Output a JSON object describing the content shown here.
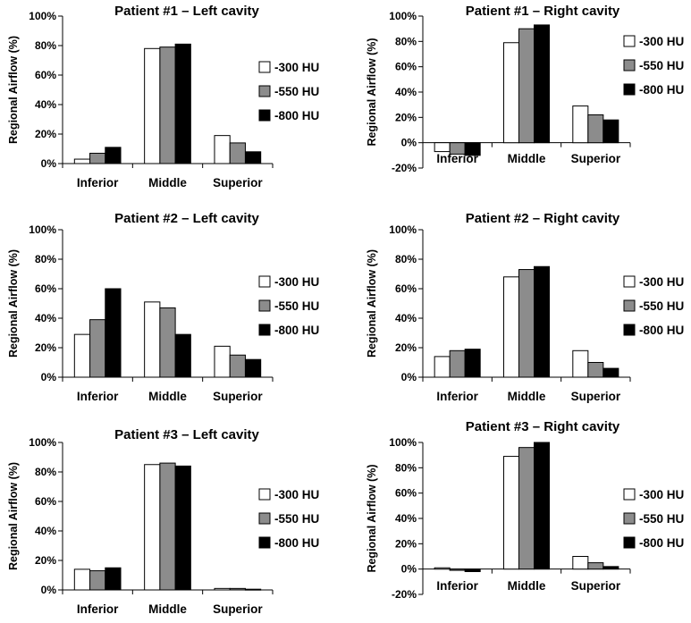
{
  "chart_data": [
    {
      "type": "bar",
      "title": "Patient #1 – Left cavity",
      "ylabel": "Regional Airflow (%)",
      "xlabel": "",
      "ylim": [
        0,
        100
      ],
      "yticks": [
        0,
        20,
        40,
        60,
        80,
        100
      ],
      "ytick_labels": [
        "0%",
        "20%",
        "40%",
        "60%",
        "80%",
        "100%"
      ],
      "categories": [
        "Inferior",
        "Middle",
        "Superior"
      ],
      "legend_position": "right",
      "series": [
        {
          "name": "-300 HU",
          "color": "#ffffff",
          "values": [
            3,
            78,
            19
          ]
        },
        {
          "name": "-550 HU",
          "color": "#8c8c8c",
          "values": [
            7,
            79,
            14
          ]
        },
        {
          "name": "-800 HU",
          "color": "#000000",
          "values": [
            11,
            81,
            8
          ]
        }
      ]
    },
    {
      "type": "bar",
      "title": "Patient #1 – Right cavity",
      "ylabel": "Regional Airflow (%)",
      "xlabel": "",
      "ylim": [
        -20,
        100
      ],
      "yticks": [
        -20,
        0,
        20,
        40,
        60,
        80,
        100
      ],
      "ytick_labels": [
        "-20%",
        "0%",
        "20%",
        "40%",
        "60%",
        "80%",
        "100%"
      ],
      "categories": [
        "Inferior",
        "Middle",
        "Superior"
      ],
      "legend_position": "right",
      "series": [
        {
          "name": "-300 HU",
          "color": "#ffffff",
          "values": [
            -7,
            79,
            29
          ]
        },
        {
          "name": "-550 HU",
          "color": "#8c8c8c",
          "values": [
            -9,
            90,
            22
          ]
        },
        {
          "name": "-800 HU",
          "color": "#000000",
          "values": [
            -10,
            93,
            18
          ]
        }
      ]
    },
    {
      "type": "bar",
      "title": "Patient #2 – Left cavity",
      "ylabel": "Regional Airflow (%)",
      "xlabel": "",
      "ylim": [
        0,
        100
      ],
      "yticks": [
        0,
        20,
        40,
        60,
        80,
        100
      ],
      "ytick_labels": [
        "0%",
        "20%",
        "40%",
        "60%",
        "80%",
        "100%"
      ],
      "categories": [
        "Inferior",
        "Middle",
        "Superior"
      ],
      "legend_position": "right",
      "series": [
        {
          "name": "-300 HU",
          "color": "#ffffff",
          "values": [
            29,
            51,
            21
          ]
        },
        {
          "name": "-550 HU",
          "color": "#8c8c8c",
          "values": [
            39,
            47,
            15
          ]
        },
        {
          "name": "-800 HU",
          "color": "#000000",
          "values": [
            60,
            29,
            12
          ]
        }
      ]
    },
    {
      "type": "bar",
      "title": "Patient #2 – Right cavity",
      "ylabel": "Regional Airflow (%)",
      "xlabel": "",
      "ylim": [
        0,
        100
      ],
      "yticks": [
        0,
        20,
        40,
        60,
        80,
        100
      ],
      "ytick_labels": [
        "0%",
        "20%",
        "40%",
        "60%",
        "80%",
        "100%"
      ],
      "categories": [
        "Inferior",
        "Middle",
        "Superior"
      ],
      "legend_position": "right",
      "series": [
        {
          "name": "-300 HU",
          "color": "#ffffff",
          "values": [
            14,
            68,
            18
          ]
        },
        {
          "name": "-550 HU",
          "color": "#8c8c8c",
          "values": [
            18,
            73,
            10
          ]
        },
        {
          "name": "-800 HU",
          "color": "#000000",
          "values": [
            19,
            75,
            6
          ]
        }
      ]
    },
    {
      "type": "bar",
      "title": "Patient #3 – Left cavity",
      "ylabel": "Regional Airflow (%)",
      "xlabel": "",
      "ylim": [
        0,
        100
      ],
      "yticks": [
        0,
        20,
        40,
        60,
        80,
        100
      ],
      "ytick_labels": [
        "0%",
        "20%",
        "40%",
        "60%",
        "80%",
        "100%"
      ],
      "categories": [
        "Inferior",
        "Middle",
        "Superior"
      ],
      "legend_position": "right",
      "series": [
        {
          "name": "-300 HU",
          "color": "#ffffff",
          "values": [
            14,
            85,
            1
          ]
        },
        {
          "name": "-550 HU",
          "color": "#8c8c8c",
          "values": [
            13,
            86,
            1
          ]
        },
        {
          "name": "-800 HU",
          "color": "#000000",
          "values": [
            15,
            84,
            0.5
          ]
        }
      ]
    },
    {
      "type": "bar",
      "title": "Patient #3 – Right cavity",
      "ylabel": "Regional Airflow (%)",
      "xlabel": "",
      "ylim": [
        -20,
        100
      ],
      "yticks": [
        -20,
        0,
        20,
        40,
        60,
        80,
        100
      ],
      "ytick_labels": [
        "-20%",
        "0%",
        "20%",
        "40%",
        "60%",
        "80%",
        "100%"
      ],
      "categories": [
        "Inferior",
        "Middle",
        "Superior"
      ],
      "legend_position": "right",
      "series": [
        {
          "name": "-300 HU",
          "color": "#ffffff",
          "values": [
            1,
            89,
            10
          ]
        },
        {
          "name": "-550 HU",
          "color": "#8c8c8c",
          "values": [
            -1,
            96,
            5
          ]
        },
        {
          "name": "-800 HU",
          "color": "#000000",
          "values": [
            -2,
            100,
            2
          ]
        }
      ]
    }
  ]
}
